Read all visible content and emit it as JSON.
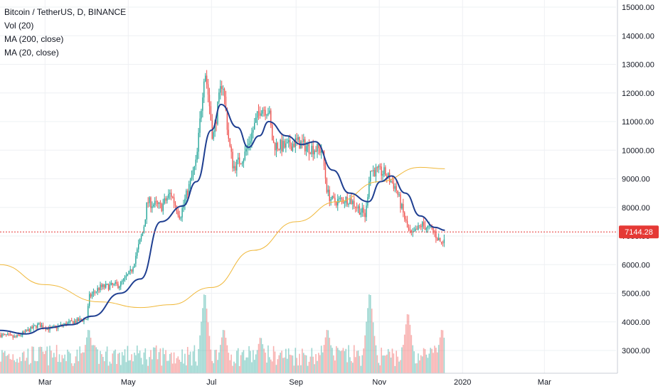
{
  "legend": {
    "title": "Bitcoin / TetherUS, D, BINANCE",
    "vol": "Vol (20)",
    "ma200": "MA (200, close)",
    "ma20": "MA (20, close)"
  },
  "colors": {
    "up": "#26a69a",
    "down": "#ef5350",
    "ma20": "#1f3f91",
    "ma200": "#f0b83a",
    "last_price_line": "#e53935",
    "grid": "#eef0f3"
  },
  "chart_data": {
    "type": "candlestick",
    "symbol": "Bitcoin / TetherUS",
    "interval": "D",
    "exchange": "BINANCE",
    "last_price": 7144.28,
    "last_price_label": "7144.28",
    "ylim": [
      2300,
      15300
    ],
    "price_ticks": [
      "15000.00",
      "14000.00",
      "13000.00",
      "12000.00",
      "11000.00",
      "10000.00",
      "9000.00",
      "8000.00",
      "7000.00",
      "6000.00",
      "5000.00",
      "4000.00",
      "3000.00"
    ],
    "time_ticks": [
      "Mar",
      "May",
      "Jul",
      "Sep",
      "Nov",
      "2020",
      "Mar"
    ],
    "close_path": [
      [
        "2019-01-27",
        3550
      ],
      [
        "2019-02-07",
        3450
      ],
      [
        "2019-02-15",
        3650
      ],
      [
        "2019-02-24",
        3900
      ],
      [
        "2019-03-05",
        3750
      ],
      [
        "2019-03-20",
        3980
      ],
      [
        "2019-04-01",
        4120
      ],
      [
        "2019-04-02",
        4850
      ],
      [
        "2019-04-10",
        5200
      ],
      [
        "2019-04-25",
        5300
      ],
      [
        "2019-05-03",
        5750
      ],
      [
        "2019-05-12",
        7200
      ],
      [
        "2019-05-15",
        8200
      ],
      [
        "2019-05-25",
        8000
      ],
      [
        "2019-06-01",
        8500
      ],
      [
        "2019-06-08",
        7700
      ],
      [
        "2019-06-15",
        8800
      ],
      [
        "2019-06-20",
        9600
      ],
      [
        "2019-06-26",
        12900
      ],
      [
        "2019-06-29",
        11800
      ],
      [
        "2019-07-02",
        10400
      ],
      [
        "2019-07-09",
        12500
      ],
      [
        "2019-07-14",
        10200
      ],
      [
        "2019-07-17",
        9400
      ],
      [
        "2019-07-25",
        9800
      ],
      [
        "2019-08-06",
        11500
      ],
      [
        "2019-08-12",
        11400
      ],
      [
        "2019-08-15",
        10200
      ],
      [
        "2019-08-25",
        10100
      ],
      [
        "2019-09-01",
        10300
      ],
      [
        "2019-09-10",
        10100
      ],
      [
        "2019-09-20",
        10000
      ],
      [
        "2019-09-24",
        8500
      ],
      [
        "2019-09-28",
        8200
      ],
      [
        "2019-10-10",
        8300
      ],
      [
        "2019-10-22",
        7700
      ],
      [
        "2019-10-25",
        9300
      ],
      [
        "2019-11-05",
        9200
      ],
      [
        "2019-11-13",
        8700
      ],
      [
        "2019-11-22",
        7200
      ],
      [
        "2019-11-25",
        7000
      ],
      [
        "2019-12-02",
        7400
      ],
      [
        "2019-12-10",
        7200
      ],
      [
        "2019-12-17",
        6700
      ],
      [
        "2019-12-19",
        7144
      ]
    ],
    "ma20_path": [
      [
        "2019-01-27",
        3700
      ],
      [
        "2019-02-15",
        3580
      ],
      [
        "2019-03-01",
        3780
      ],
      [
        "2019-03-20",
        3900
      ],
      [
        "2019-04-05",
        4200
      ],
      [
        "2019-04-25",
        5000
      ],
      [
        "2019-05-10",
        5500
      ],
      [
        "2019-05-25",
        7500
      ],
      [
        "2019-06-10",
        8050
      ],
      [
        "2019-06-20",
        8900
      ],
      [
        "2019-07-01",
        10700
      ],
      [
        "2019-07-08",
        11600
      ],
      [
        "2019-07-20",
        10800
      ],
      [
        "2019-07-28",
        10100
      ],
      [
        "2019-08-05",
        10500
      ],
      [
        "2019-08-12",
        11000
      ],
      [
        "2019-08-25",
        10500
      ],
      [
        "2019-09-05",
        10200
      ],
      [
        "2019-09-15",
        10300
      ],
      [
        "2019-09-28",
        9300
      ],
      [
        "2019-10-10",
        8500
      ],
      [
        "2019-10-24",
        8200
      ],
      [
        "2019-11-02",
        8900
      ],
      [
        "2019-11-10",
        9100
      ],
      [
        "2019-11-20",
        8500
      ],
      [
        "2019-12-01",
        7700
      ],
      [
        "2019-12-12",
        7300
      ],
      [
        "2019-12-19",
        7200
      ]
    ],
    "ma200_path": [
      [
        "2019-01-27",
        6000
      ],
      [
        "2019-03-01",
        5300
      ],
      [
        "2019-04-10",
        4700
      ],
      [
        "2019-05-10",
        4500
      ],
      [
        "2019-06-01",
        4600
      ],
      [
        "2019-07-01",
        5200
      ],
      [
        "2019-08-01",
        6500
      ],
      [
        "2019-09-01",
        7500
      ],
      [
        "2019-10-01",
        8200
      ],
      [
        "2019-11-01",
        8900
      ],
      [
        "2019-12-01",
        9400
      ],
      [
        "2019-12-19",
        9350
      ]
    ],
    "volume_spikes": [
      [
        "2019-04-02",
        0.55
      ],
      [
        "2019-06-26",
        1.0
      ],
      [
        "2019-07-10",
        0.55
      ],
      [
        "2019-08-06",
        0.45
      ],
      [
        "2019-09-24",
        0.55
      ],
      [
        "2019-10-25",
        1.0
      ],
      [
        "2019-11-22",
        0.75
      ],
      [
        "2019-12-17",
        0.55
      ]
    ]
  }
}
